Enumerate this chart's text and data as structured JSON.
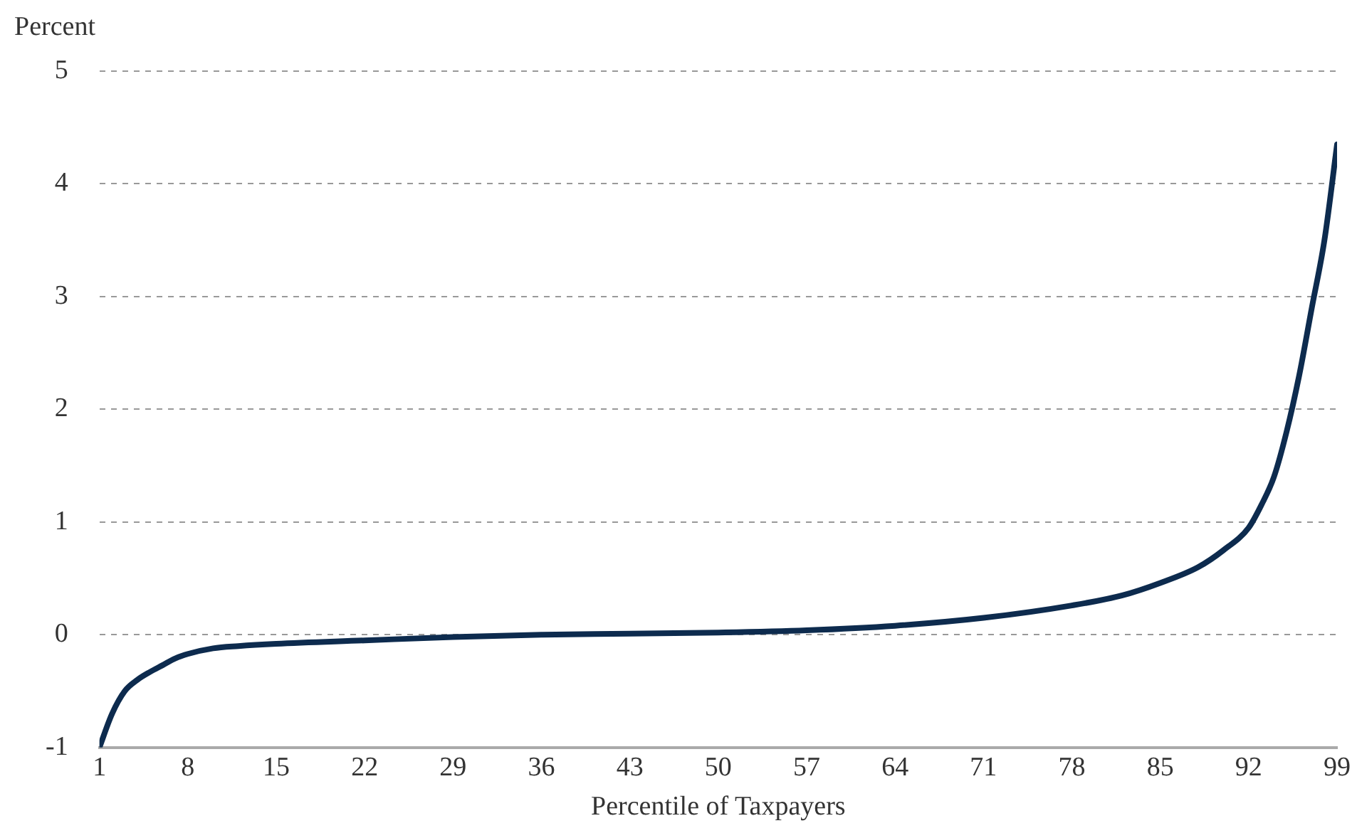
{
  "chart_data": {
    "type": "line",
    "ylabel": "Percent",
    "xlabel": "Percentile of Taxpayers",
    "xlim": [
      1,
      99
    ],
    "xticks": [
      1,
      8,
      15,
      22,
      29,
      36,
      43,
      50,
      57,
      64,
      71,
      78,
      85,
      92,
      99
    ],
    "ylim": [
      -1,
      5
    ],
    "yticks": [
      -1,
      0,
      1,
      2,
      3,
      4,
      5
    ],
    "grid": "y",
    "legend": false,
    "marker": "none",
    "line_style": "solid",
    "series": [
      {
        "color": "#0d2b4e",
        "x": [
          1,
          2,
          3,
          4,
          5,
          6,
          7,
          8,
          10,
          12,
          15,
          22,
          29,
          36,
          43,
          50,
          57,
          64,
          71,
          78,
          82,
          85,
          88,
          90,
          92,
          93,
          94,
          95,
          96,
          97,
          98,
          99
        ],
        "values": [
          -1,
          -0.7,
          -0.5,
          -0.4,
          -0.33,
          -0.27,
          -0.21,
          -0.17,
          -0.12,
          -0.1,
          -0.08,
          -0.05,
          -0.02,
          0,
          0.01,
          0.02,
          0.04,
          0.08,
          0.15,
          0.26,
          0.35,
          0.46,
          0.6,
          0.75,
          0.95,
          1.15,
          1.4,
          1.8,
          2.3,
          2.9,
          3.5,
          4.35
        ]
      }
    ]
  }
}
